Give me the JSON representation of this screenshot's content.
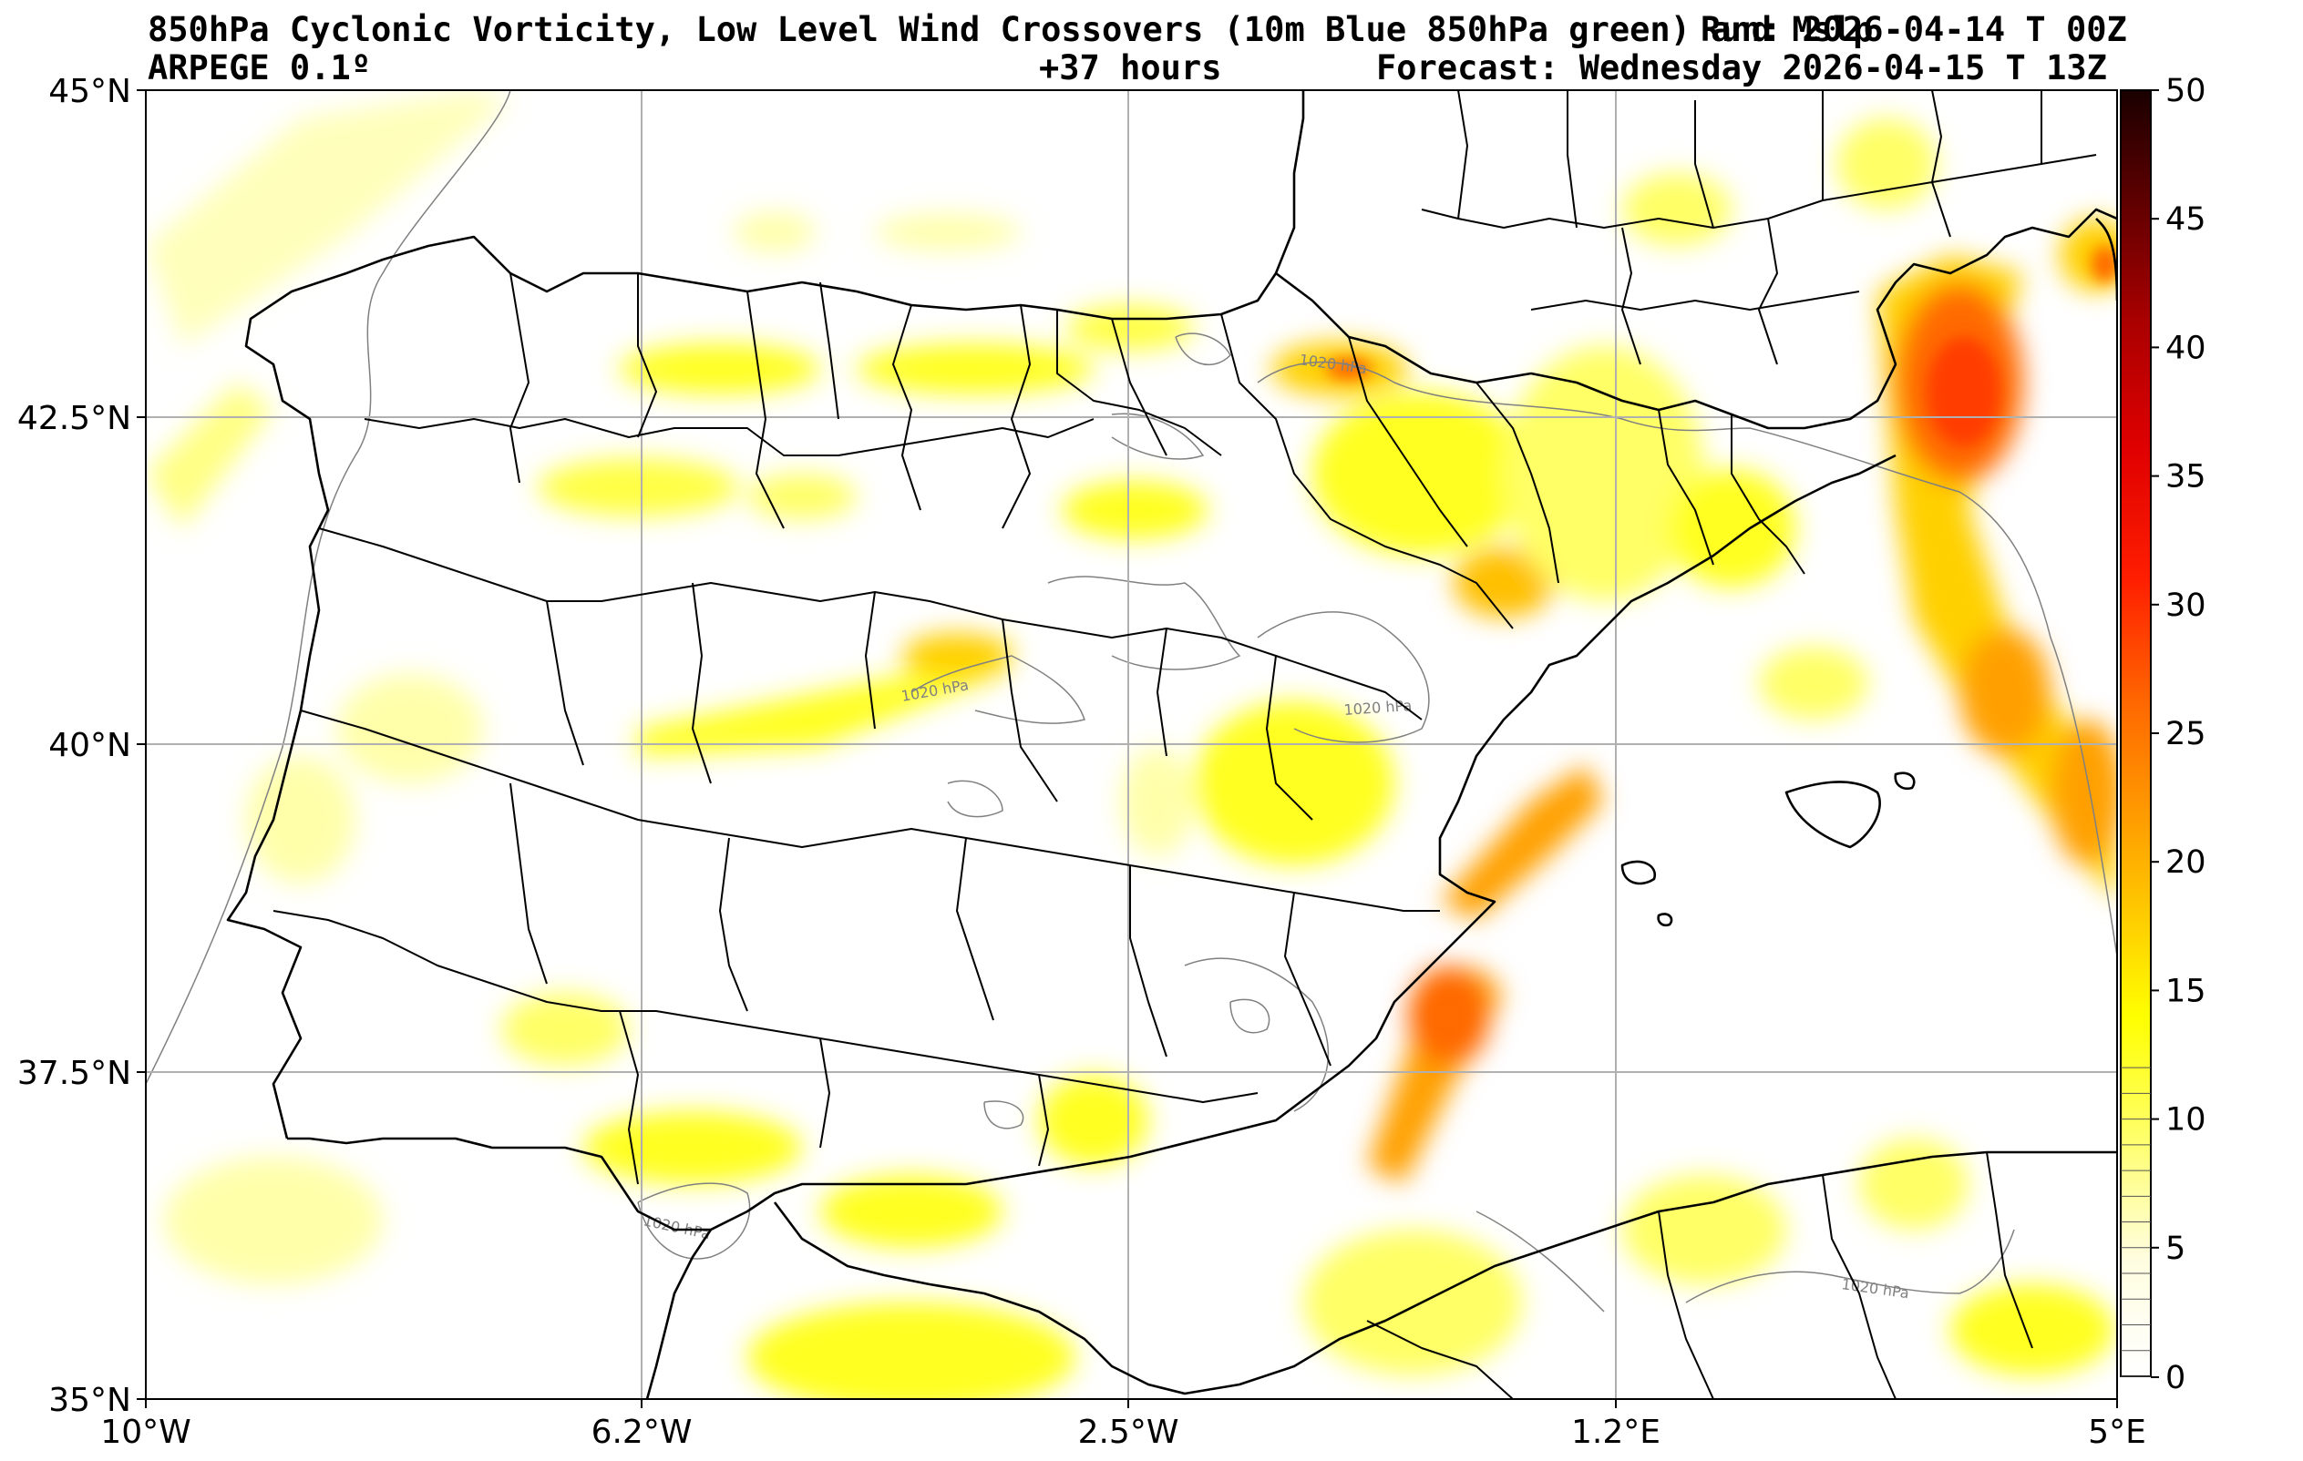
{
  "header": {
    "title_line1": "850hPa Cyclonic Vorticity, Low Level Wind Crossovers (10m Blue 850hPa green) and Mslp",
    "run_text": "Run: 2026-04-14 T 00Z",
    "model": "ARPEGE 0.1º",
    "lead_time": "+37 hours",
    "forecast": "Forecast: Wednesday 2026-04-15 T 13Z"
  },
  "map": {
    "lon_ticks": [
      "10°W",
      "6.2°W",
      "2.5°W",
      "1.2°E",
      "5°E"
    ],
    "lat_ticks": [
      "45°N",
      "42.5°N",
      "40°N",
      "37.5°N",
      "35°N"
    ],
    "isobar_label": "1020 hPa",
    "colors": {
      "land_border": "#000000",
      "isobar": "#808080",
      "grid": "#b0b0b0"
    }
  },
  "colorbar": {
    "min": 0,
    "max": 50,
    "labels": [
      "50",
      "45",
      "40",
      "35",
      "30",
      "25",
      "20",
      "15",
      "10",
      "5",
      "0"
    ],
    "ramp": [
      "#ffffff",
      "#ffff99",
      "#ffff00",
      "#ffd200",
      "#ffa500",
      "#ff7800",
      "#ff3c00",
      "#ff0000",
      "#d20000",
      "#960000",
      "#5a0000",
      "#1a0000"
    ]
  }
}
